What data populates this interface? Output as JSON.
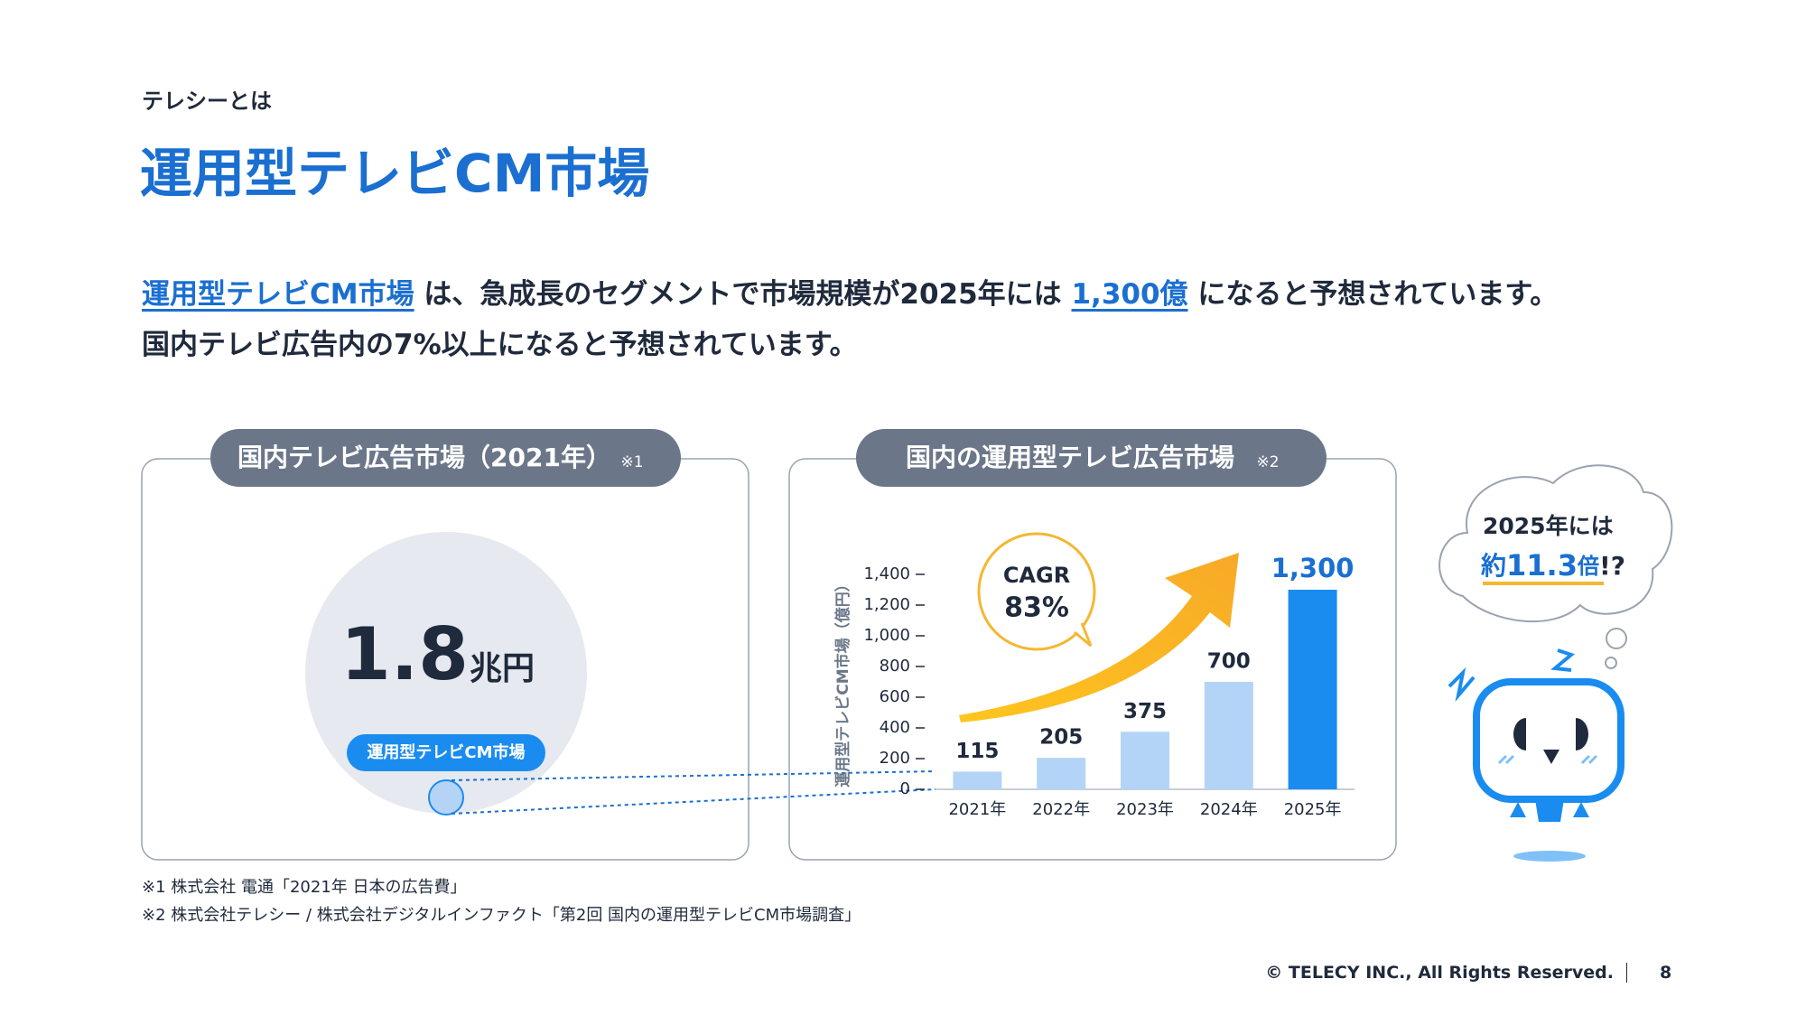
{
  "header": {
    "section": "テレシーとは",
    "title": "運用型テレビCM市場"
  },
  "body": {
    "line1": [
      "運用型テレビCM市場",
      " は、急成長のセグメントで市場規模が2025年には ",
      "1,300億",
      " になると予想されています。"
    ],
    "line2": "国内テレビ広告内の7%以上になると予想されています。"
  },
  "left_panel": {
    "heading": "国内テレビ広告市場（2021年）",
    "note": "※1",
    "value": "1.8",
    "unit": "兆円",
    "segment": "運用型テレビCM市場"
  },
  "right_panel": {
    "heading": "国内の運用型テレビ広告市場",
    "note": "※2",
    "cagr_label": "CAGR",
    "cagr_value": "83%"
  },
  "chart_data": {
    "type": "bar",
    "ylabel": "運用型テレビCM市場（億円）",
    "categories": [
      "2021年",
      "2022年",
      "2023年",
      "2024年",
      "2025年"
    ],
    "values": [
      115,
      205,
      375,
      700,
      1300
    ],
    "value_labels": [
      "115",
      "205",
      "375",
      "700",
      "1,300"
    ],
    "colors": [
      "#b3d4f7",
      "#b3d4f7",
      "#b3d4f7",
      "#b3d4f7",
      "#1a8cf0"
    ],
    "ylim": [
      0,
      1400
    ],
    "yticks": [
      0,
      200,
      400,
      600,
      800,
      {
        "value": 1000,
        "label": "1,000"
      },
      {
        "value": 1200,
        "label": "1,200"
      },
      {
        "value": 1400,
        "label": "1,400"
      }
    ],
    "grid": false
  },
  "bubble": {
    "line1": "2025年には",
    "prefix": "約",
    "figure": "11.3",
    "suffix": "倍",
    "mark": "!?"
  },
  "footnotes": [
    "※1  株式会社 電通「2021年 日本の広告費」",
    "※2  株式会社テレシー / 株式会社デジタルインファクト「第2回 国内の運用型テレビCM市場調査」"
  ],
  "footer": {
    "copyright": "© TELECY INC., All Rights Reserved.",
    "page": "8"
  }
}
